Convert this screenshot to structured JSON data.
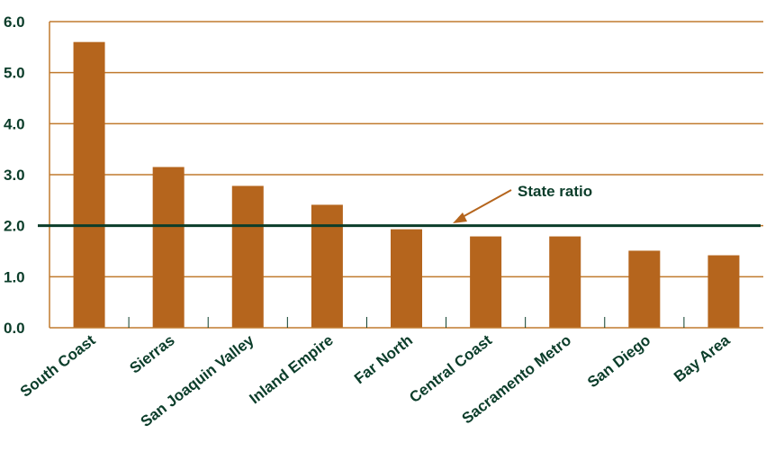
{
  "chart_data": {
    "type": "bar",
    "categories": [
      "South Coast",
      "Sierras",
      "San Joaquin Valley",
      "Inland Empire",
      "Far North",
      "Central Coast",
      "Sacramento Metro",
      "San Diego",
      "Bay Area"
    ],
    "values": [
      5.6,
      3.15,
      2.78,
      2.41,
      1.93,
      1.79,
      1.79,
      1.51,
      1.42
    ],
    "ylim": [
      0,
      6
    ],
    "yticks": [
      "0.0",
      "1.0",
      "2.0",
      "3.0",
      "4.0",
      "5.0",
      "6.0"
    ],
    "grid": true,
    "reference_line": {
      "label": "State ratio",
      "value": 2.0
    },
    "colors": {
      "bar": "#b5651d",
      "grid": "#c07a2e",
      "reference": "#0b3d2a",
      "text": "#0b3d2a"
    }
  }
}
